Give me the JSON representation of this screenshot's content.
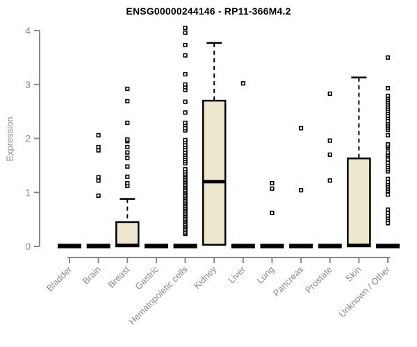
{
  "title": "ENSG00000244146 - RP11-366M4.2",
  "colors": {
    "box_fill": "#ece7cd",
    "box_border": "#000000",
    "median": "#000000",
    "whisker": "#000000",
    "outlier_stroke": "#000000",
    "outlier_fill": "#ffffff",
    "axis": "#878787",
    "axis_text": "#8c8c8c",
    "title_text": "#000000",
    "background": "#ffffff"
  },
  "chart_data": {
    "type": "boxplot",
    "title": "ENSG00000244146 - RP11-366M4.2",
    "xlabel": "",
    "ylabel": "Expression",
    "ylim": [
      0,
      4
    ],
    "yticks": [
      0,
      1,
      2,
      3,
      4
    ],
    "grid": false,
    "legend": "none",
    "categories": [
      "Bladder",
      "Brain",
      "Breast",
      "Gastric",
      "Hematopoietic cells",
      "Kidney",
      "Liver",
      "Lung",
      "Pancreas",
      "Prostate",
      "Skin",
      "Unknown / Other"
    ],
    "boxes": [
      {
        "category": "Bladder",
        "q1": 0,
        "median": 0,
        "q3": 0,
        "whisker_low": 0,
        "whisker_high": 0,
        "flat": true,
        "outliers": []
      },
      {
        "category": "Brain",
        "q1": 0,
        "median": 0,
        "q3": 0,
        "whisker_low": 0,
        "whisker_high": 0,
        "flat": true,
        "outliers": [
          0.94,
          1.22,
          1.28,
          1.78,
          1.84,
          2.06
        ]
      },
      {
        "category": "Breast",
        "q1": 0,
        "median": 0.02,
        "q3": 0.45,
        "whisker_low": 0,
        "whisker_high": 0.88,
        "flat": false,
        "outliers": [
          1.12,
          1.17,
          1.29,
          1.48,
          1.64,
          1.74,
          1.84,
          1.95,
          1.98,
          2.29,
          2.69,
          2.92
        ]
      },
      {
        "category": "Gastric",
        "q1": 0,
        "median": 0,
        "q3": 0,
        "whisker_low": 0,
        "whisker_high": 0,
        "flat": true,
        "outliers": []
      },
      {
        "category": "Hematopoietic cells",
        "q1": 0,
        "median": 0,
        "q3": 0,
        "whisker_low": 0,
        "whisker_high": 0,
        "flat": true,
        "outliers": [
          0.23,
          0.26,
          0.3,
          0.33,
          0.36,
          0.39,
          0.42,
          0.45,
          0.48,
          0.51,
          0.54,
          0.57,
          0.6,
          0.63,
          0.66,
          0.69,
          0.72,
          0.75,
          0.78,
          0.81,
          0.84,
          0.87,
          0.9,
          0.93,
          0.96,
          0.99,
          1.02,
          1.05,
          1.08,
          1.11,
          1.14,
          1.17,
          1.2,
          1.23,
          1.26,
          1.29,
          1.32,
          1.35,
          1.39,
          1.43,
          1.54,
          1.58,
          1.62,
          1.66,
          1.7,
          1.74,
          1.79,
          1.84,
          1.88,
          1.93,
          1.97,
          2.15,
          2.19,
          2.25,
          2.29,
          2.48,
          2.68,
          2.9,
          2.95,
          3.0,
          3.19,
          3.54,
          3.73,
          3.96,
          4.05
        ]
      },
      {
        "category": "Kidney",
        "q1": 0.03,
        "median": 1.2,
        "q3": 2.7,
        "whisker_low": 0.03,
        "whisker_high": 3.77,
        "flat": false,
        "outliers": []
      },
      {
        "category": "Liver",
        "q1": 0,
        "median": 0,
        "q3": 0,
        "whisker_low": 0,
        "whisker_high": 0,
        "flat": true,
        "outliers": [
          3.02
        ]
      },
      {
        "category": "Lung",
        "q1": 0,
        "median": 0,
        "q3": 0,
        "whisker_low": 0,
        "whisker_high": 0,
        "flat": true,
        "outliers": [
          0.62,
          1.07,
          1.17
        ]
      },
      {
        "category": "Pancreas",
        "q1": 0,
        "median": 0,
        "q3": 0,
        "whisker_low": 0,
        "whisker_high": 0,
        "flat": true,
        "outliers": [
          1.04,
          2.19
        ]
      },
      {
        "category": "Prostate",
        "q1": 0,
        "median": 0,
        "q3": 0,
        "whisker_low": 0,
        "whisker_high": 0,
        "flat": true,
        "outliers": [
          1.22,
          1.7,
          1.96,
          2.83
        ]
      },
      {
        "category": "Skin",
        "q1": 0,
        "median": 0.02,
        "q3": 1.63,
        "whisker_low": 0,
        "whisker_high": 3.13,
        "flat": false,
        "outliers": []
      },
      {
        "category": "Unknown / Other",
        "q1": 0,
        "median": 0,
        "q3": 0,
        "whisker_low": 0,
        "whisker_high": 0,
        "flat": true,
        "outliers": [
          0.43,
          0.49,
          0.53,
          0.57,
          0.62,
          0.68,
          0.96,
          1.03,
          1.07,
          1.11,
          1.15,
          1.19,
          1.25,
          1.39,
          1.43,
          1.47,
          1.51,
          1.55,
          1.61,
          1.67,
          1.7,
          1.74,
          1.83,
          1.86,
          1.89,
          2.06,
          2.16,
          2.2,
          2.24,
          2.28,
          2.32,
          2.38,
          2.42,
          2.47,
          2.51,
          2.55,
          2.59,
          2.63,
          2.67,
          2.71,
          2.75,
          2.79,
          2.93,
          3.5
        ]
      }
    ]
  }
}
